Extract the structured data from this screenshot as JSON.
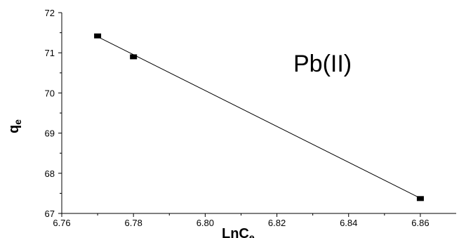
{
  "chart_data": {
    "type": "scatter",
    "x": [
      6.77,
      6.78,
      6.86
    ],
    "y": [
      71.42,
      70.9,
      67.37
    ],
    "fit_line": {
      "x": [
        6.77,
        6.86
      ],
      "y": [
        71.4,
        67.38
      ]
    },
    "xlabel": {
      "main": "LnC",
      "sub": "e"
    },
    "ylabel": {
      "main": "q",
      "sub": "e"
    },
    "xlim": [
      6.76,
      6.87
    ],
    "ylim": [
      67,
      72
    ],
    "xticks": [
      "6.76",
      "6.78",
      "6.80",
      "6.82",
      "6.84",
      "6.86"
    ],
    "yticks": [
      "67",
      "68",
      "69",
      "70",
      "71",
      "72"
    ],
    "annotation": "Pb(II)",
    "grid": false,
    "marker": "square",
    "color": "#000000"
  }
}
